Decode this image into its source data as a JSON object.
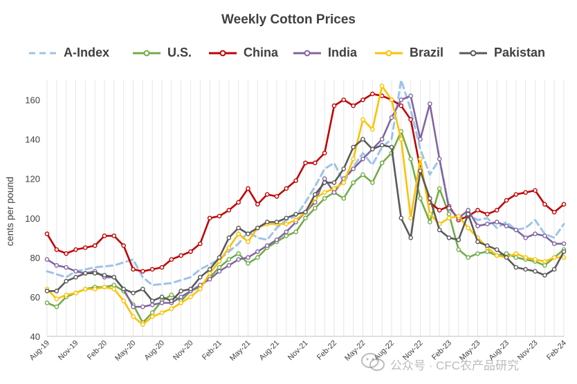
{
  "chart_data": {
    "type": "line",
    "title": "Weekly Cotton Prices",
    "ylabel": "cents per pound",
    "xlabel": "",
    "ylim": [
      40,
      170
    ],
    "yticks": [
      40,
      60,
      80,
      100,
      120,
      140,
      160
    ],
    "grid": "vertical",
    "legend_position": "top",
    "xticks": [
      "Aug-19",
      "Nov-19",
      "Feb-20",
      "May-20",
      "Aug-20",
      "Nov-20",
      "Feb-21",
      "May-21",
      "Aug-21",
      "Nov-21",
      "Feb-22",
      "May-22",
      "Aug-22",
      "Nov-22",
      "Feb-23",
      "May-23",
      "Aug-23",
      "Nov-23",
      "Feb-24"
    ],
    "x_range": [
      0,
      54
    ],
    "series": [
      {
        "name": "A-Index",
        "color": "#9dc3e6",
        "style": "dashed",
        "markers": false,
        "points": [
          [
            0,
            73
          ],
          [
            2,
            70
          ],
          [
            3,
            73
          ],
          [
            5,
            75
          ],
          [
            7,
            76
          ],
          [
            9,
            79
          ],
          [
            10,
            70
          ],
          [
            11,
            66
          ],
          [
            13,
            67
          ],
          [
            15,
            70
          ],
          [
            16,
            74
          ],
          [
            18,
            79
          ],
          [
            20,
            87
          ],
          [
            21,
            93
          ],
          [
            22,
            90
          ],
          [
            23,
            89
          ],
          [
            24,
            95
          ],
          [
            25,
            99
          ],
          [
            26,
            101
          ],
          [
            27,
            108
          ],
          [
            28,
            116
          ],
          [
            29,
            125
          ],
          [
            30,
            128
          ],
          [
            31,
            118
          ],
          [
            32,
            126
          ],
          [
            33,
            133
          ],
          [
            34,
            127
          ],
          [
            35,
            136
          ],
          [
            36,
            140
          ],
          [
            37,
            170
          ],
          [
            38,
            155
          ],
          [
            39,
            135
          ],
          [
            40,
            122
          ],
          [
            41,
            130
          ],
          [
            42,
            105
          ],
          [
            43,
            100
          ],
          [
            44,
            102
          ],
          [
            45,
            99
          ],
          [
            46,
            100
          ],
          [
            47,
            95
          ],
          [
            48,
            98
          ],
          [
            49,
            94
          ],
          [
            50,
            95
          ],
          [
            51,
            99
          ],
          [
            52,
            92
          ],
          [
            53,
            90
          ],
          [
            54,
            97
          ]
        ]
      },
      {
        "name": "U.S.",
        "color": "#70ad47",
        "style": "solid",
        "markers": true,
        "points": [
          [
            0,
            57
          ],
          [
            1,
            55
          ],
          [
            2,
            60
          ],
          [
            3,
            62
          ],
          [
            4,
            64
          ],
          [
            5,
            65
          ],
          [
            6,
            65
          ],
          [
            7,
            66
          ],
          [
            8,
            63
          ],
          [
            9,
            56
          ],
          [
            10,
            47
          ],
          [
            11,
            52
          ],
          [
            12,
            58
          ],
          [
            13,
            61
          ],
          [
            14,
            58
          ],
          [
            15,
            63
          ],
          [
            16,
            65
          ],
          [
            17,
            70
          ],
          [
            18,
            75
          ],
          [
            19,
            79
          ],
          [
            20,
            82
          ],
          [
            21,
            77
          ],
          [
            22,
            80
          ],
          [
            23,
            85
          ],
          [
            24,
            88
          ],
          [
            25,
            91
          ],
          [
            26,
            93
          ],
          [
            27,
            100
          ],
          [
            28,
            105
          ],
          [
            29,
            110
          ],
          [
            30,
            113
          ],
          [
            31,
            110
          ],
          [
            32,
            118
          ],
          [
            33,
            122
          ],
          [
            34,
            118
          ],
          [
            35,
            128
          ],
          [
            36,
            133
          ],
          [
            37,
            144
          ],
          [
            38,
            130
          ],
          [
            39,
            110
          ],
          [
            40,
            98
          ],
          [
            41,
            115
          ],
          [
            42,
            102
          ],
          [
            43,
            84
          ],
          [
            44,
            80
          ],
          [
            45,
            82
          ],
          [
            46,
            83
          ],
          [
            47,
            81
          ],
          [
            48,
            82
          ],
          [
            49,
            80
          ],
          [
            50,
            79
          ],
          [
            51,
            78
          ],
          [
            52,
            76
          ],
          [
            53,
            80
          ],
          [
            54,
            84
          ]
        ]
      },
      {
        "name": "China",
        "color": "#c00000",
        "style": "solid",
        "markers": true,
        "points": [
          [
            0,
            92
          ],
          [
            1,
            84
          ],
          [
            2,
            82
          ],
          [
            3,
            84
          ],
          [
            4,
            85
          ],
          [
            5,
            86
          ],
          [
            6,
            91
          ],
          [
            7,
            91
          ],
          [
            8,
            86
          ],
          [
            9,
            74
          ],
          [
            10,
            73
          ],
          [
            11,
            74
          ],
          [
            12,
            75
          ],
          [
            13,
            79
          ],
          [
            14,
            81
          ],
          [
            15,
            83
          ],
          [
            16,
            87
          ],
          [
            17,
            100
          ],
          [
            18,
            101
          ],
          [
            19,
            104
          ],
          [
            20,
            108
          ],
          [
            21,
            115
          ],
          [
            22,
            107
          ],
          [
            23,
            112
          ],
          [
            24,
            111
          ],
          [
            25,
            115
          ],
          [
            26,
            119
          ],
          [
            27,
            128
          ],
          [
            28,
            128
          ],
          [
            29,
            133
          ],
          [
            30,
            157
          ],
          [
            31,
            160
          ],
          [
            32,
            157
          ],
          [
            33,
            160
          ],
          [
            34,
            163
          ],
          [
            35,
            162
          ],
          [
            36,
            160
          ],
          [
            37,
            157
          ],
          [
            38,
            150
          ],
          [
            39,
            125
          ],
          [
            40,
            108
          ],
          [
            41,
            104
          ],
          [
            42,
            106
          ],
          [
            43,
            99
          ],
          [
            44,
            101
          ],
          [
            45,
            104
          ],
          [
            46,
            102
          ],
          [
            47,
            104
          ],
          [
            48,
            109
          ],
          [
            49,
            112
          ],
          [
            50,
            113
          ],
          [
            51,
            114
          ],
          [
            52,
            107
          ],
          [
            53,
            103
          ],
          [
            54,
            107
          ]
        ]
      },
      {
        "name": "India",
        "color": "#8064a2",
        "style": "solid",
        "markers": true,
        "points": [
          [
            0,
            79
          ],
          [
            1,
            76
          ],
          [
            2,
            75
          ],
          [
            3,
            73
          ],
          [
            4,
            72
          ],
          [
            5,
            73
          ],
          [
            6,
            70
          ],
          [
            7,
            70
          ],
          [
            8,
            64
          ],
          [
            9,
            55
          ],
          [
            10,
            55
          ],
          [
            11,
            56
          ],
          [
            12,
            57
          ],
          [
            13,
            57
          ],
          [
            14,
            60
          ],
          [
            15,
            63
          ],
          [
            16,
            66
          ],
          [
            17,
            69
          ],
          [
            18,
            73
          ],
          [
            19,
            76
          ],
          [
            20,
            79
          ],
          [
            21,
            80
          ],
          [
            22,
            83
          ],
          [
            23,
            86
          ],
          [
            24,
            89
          ],
          [
            25,
            93
          ],
          [
            26,
            98
          ],
          [
            27,
            103
          ],
          [
            28,
            108
          ],
          [
            29,
            120
          ],
          [
            30,
            113
          ],
          [
            31,
            120
          ],
          [
            32,
            125
          ],
          [
            33,
            130
          ],
          [
            34,
            135
          ],
          [
            35,
            140
          ],
          [
            36,
            151
          ],
          [
            37,
            160
          ],
          [
            38,
            162
          ],
          [
            39,
            140
          ],
          [
            40,
            158
          ],
          [
            41,
            130
          ],
          [
            42,
            105
          ],
          [
            43,
            100
          ],
          [
            44,
            104
          ],
          [
            45,
            96
          ],
          [
            46,
            97
          ],
          [
            47,
            98
          ],
          [
            48,
            96
          ],
          [
            49,
            94
          ],
          [
            50,
            90
          ],
          [
            51,
            92
          ],
          [
            52,
            91
          ],
          [
            53,
            87
          ],
          [
            54,
            87
          ]
        ]
      },
      {
        "name": "Brazil",
        "color": "#ffc000",
        "style": "solid",
        "markers": true,
        "points": [
          [
            0,
            64
          ],
          [
            1,
            59
          ],
          [
            2,
            61
          ],
          [
            3,
            62
          ],
          [
            4,
            64
          ],
          [
            5,
            64
          ],
          [
            6,
            65
          ],
          [
            7,
            64
          ],
          [
            8,
            58
          ],
          [
            9,
            50
          ],
          [
            10,
            46
          ],
          [
            11,
            50
          ],
          [
            12,
            52
          ],
          [
            13,
            54
          ],
          [
            14,
            57
          ],
          [
            15,
            60
          ],
          [
            16,
            64
          ],
          [
            17,
            72
          ],
          [
            18,
            78
          ],
          [
            19,
            85
          ],
          [
            20,
            92
          ],
          [
            21,
            88
          ],
          [
            22,
            95
          ],
          [
            23,
            97
          ],
          [
            24,
            97
          ],
          [
            25,
            97
          ],
          [
            26,
            99
          ],
          [
            27,
            103
          ],
          [
            28,
            110
          ],
          [
            29,
            113
          ],
          [
            30,
            115
          ],
          [
            31,
            118
          ],
          [
            32,
            130
          ],
          [
            33,
            150
          ],
          [
            34,
            145
          ],
          [
            35,
            167
          ],
          [
            36,
            160
          ],
          [
            37,
            140
          ],
          [
            38,
            100
          ],
          [
            39,
            130
          ],
          [
            40,
            102
          ],
          [
            41,
            97
          ],
          [
            42,
            100
          ],
          [
            43,
            101
          ],
          [
            44,
            95
          ],
          [
            45,
            90
          ],
          [
            46,
            85
          ],
          [
            47,
            81
          ],
          [
            48,
            80
          ],
          [
            49,
            82
          ],
          [
            50,
            80
          ],
          [
            51,
            79
          ],
          [
            52,
            78
          ],
          [
            53,
            80
          ],
          [
            54,
            80
          ]
        ]
      },
      {
        "name": "Pakistan",
        "color": "#595959",
        "style": "solid",
        "markers": true,
        "points": [
          [
            0,
            63
          ],
          [
            1,
            63
          ],
          [
            2,
            68
          ],
          [
            3,
            70
          ],
          [
            4,
            72
          ],
          [
            5,
            72
          ],
          [
            6,
            71
          ],
          [
            7,
            70
          ],
          [
            8,
            64
          ],
          [
            9,
            62
          ],
          [
            10,
            64
          ],
          [
            11,
            58
          ],
          [
            12,
            60
          ],
          [
            13,
            58
          ],
          [
            14,
            63
          ],
          [
            15,
            64
          ],
          [
            16,
            70
          ],
          [
            17,
            74
          ],
          [
            18,
            80
          ],
          [
            19,
            90
          ],
          [
            20,
            95
          ],
          [
            21,
            92
          ],
          [
            22,
            95
          ],
          [
            23,
            98
          ],
          [
            24,
            98
          ],
          [
            25,
            100
          ],
          [
            26,
            102
          ],
          [
            27,
            103
          ],
          [
            28,
            112
          ],
          [
            29,
            118
          ],
          [
            30,
            118
          ],
          [
            31,
            125
          ],
          [
            32,
            136
          ],
          [
            33,
            140
          ],
          [
            34,
            135
          ],
          [
            35,
            137
          ],
          [
            36,
            136
          ],
          [
            37,
            100
          ],
          [
            38,
            90
          ],
          [
            39,
            124
          ],
          [
            40,
            110
          ],
          [
            41,
            94
          ],
          [
            42,
            90
          ],
          [
            43,
            89
          ],
          [
            44,
            102
          ],
          [
            45,
            88
          ],
          [
            46,
            86
          ],
          [
            47,
            84
          ],
          [
            48,
            80
          ],
          [
            49,
            75
          ],
          [
            50,
            74
          ],
          [
            51,
            73
          ],
          [
            52,
            71
          ],
          [
            53,
            74
          ],
          [
            54,
            83
          ]
        ]
      }
    ]
  },
  "watermark": {
    "text": "公众号 · CFC农产品研究"
  }
}
